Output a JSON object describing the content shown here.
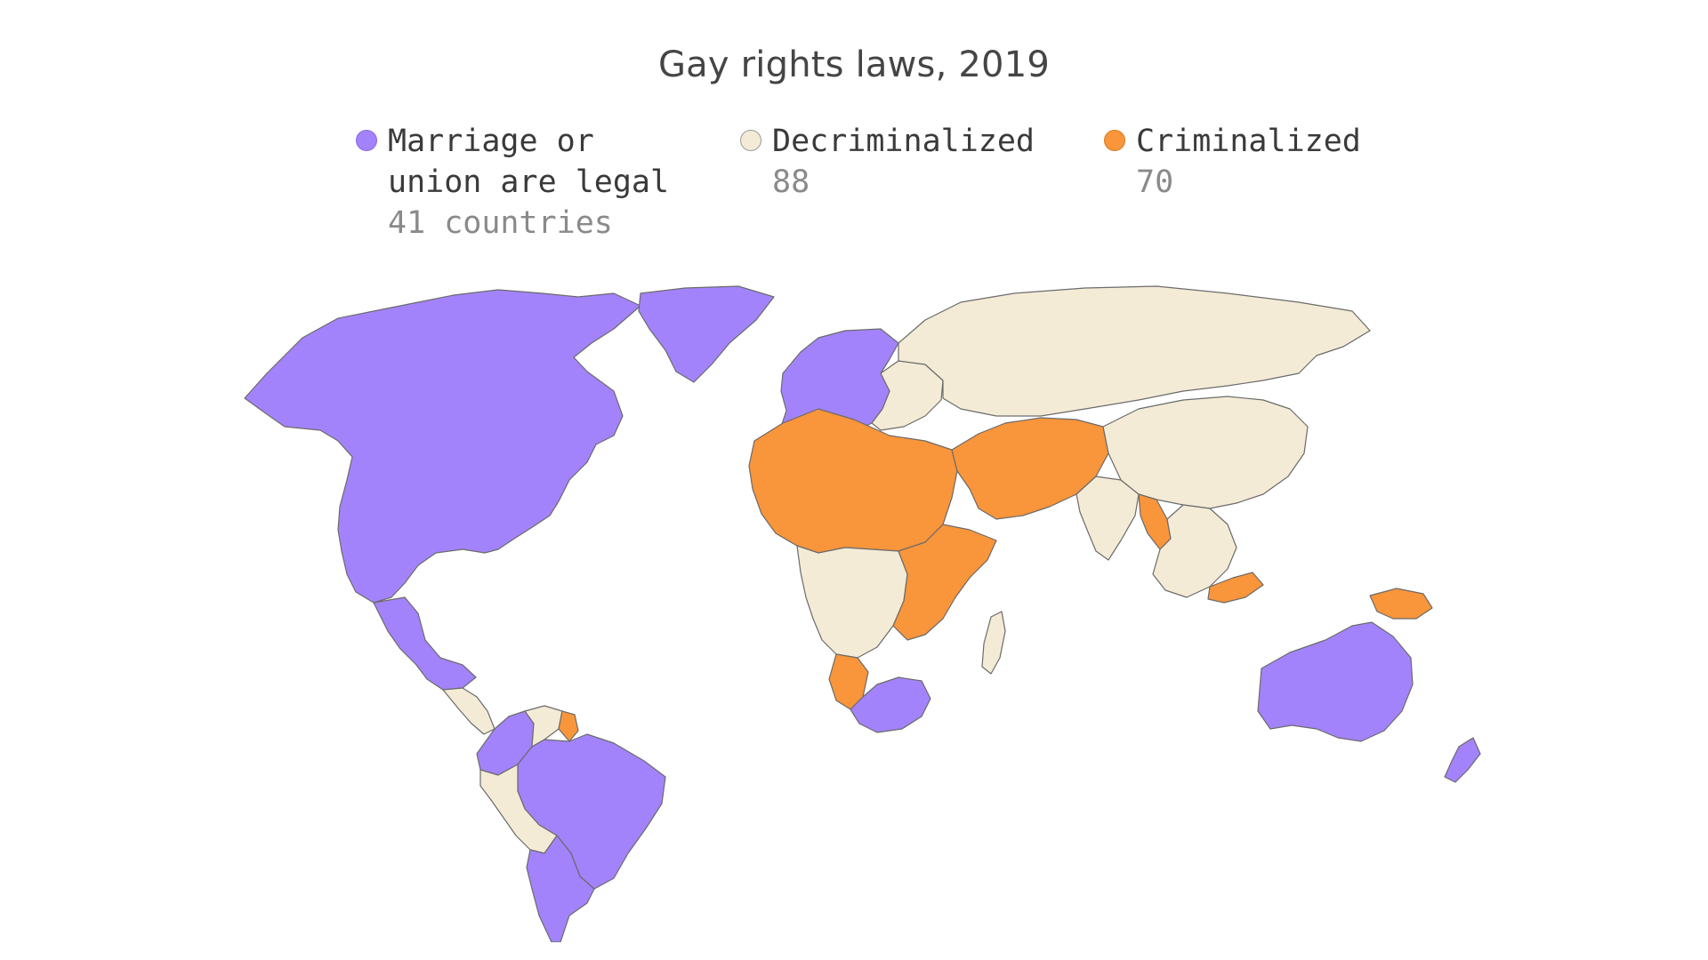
{
  "title": "Gay rights laws, 2019",
  "legend": [
    {
      "line1": "Marriage or",
      "line2": "union are legal",
      "count": "41 countries",
      "color": "#a383fb"
    },
    {
      "line1": "Decriminalized",
      "line2": "",
      "count": "88",
      "color": "#f4ebd6"
    },
    {
      "line1": "Criminalized",
      "line2": "",
      "count": "70",
      "color": "#f9953a"
    }
  ],
  "map_data": {
    "type": "choropleth",
    "categories": [
      "Marriage or union are legal",
      "Decriminalized",
      "Criminalized"
    ],
    "counts": [
      41,
      88,
      70
    ],
    "colors": {
      "marriage": "#a383fb",
      "decriminalized": "#f4ebd6",
      "criminalized": "#f9953a",
      "border": "#6b6b6b"
    },
    "regions": [
      {
        "name": "North America",
        "status": "marriage"
      },
      {
        "name": "Greenland",
        "status": "marriage"
      },
      {
        "name": "Mexico",
        "status": "marriage"
      },
      {
        "name": "Central America",
        "status": "decriminalized"
      },
      {
        "name": "Colombia & Ecuador",
        "status": "marriage"
      },
      {
        "name": "Venezuela",
        "status": "decriminalized"
      },
      {
        "name": "Guyana",
        "status": "criminalized"
      },
      {
        "name": "Brazil",
        "status": "marriage"
      },
      {
        "name": "Peru & Bolivia",
        "status": "decriminalized"
      },
      {
        "name": "Southern Cone",
        "status": "marriage"
      },
      {
        "name": "Western Europe",
        "status": "marriage"
      },
      {
        "name": "Eastern Europe",
        "status": "decriminalized"
      },
      {
        "name": "Russia & Central Asia",
        "status": "decriminalized"
      },
      {
        "name": "North Africa & Sahel",
        "status": "criminalized"
      },
      {
        "name": "Middle East & South Asia",
        "status": "criminalized"
      },
      {
        "name": "India",
        "status": "decriminalized"
      },
      {
        "name": "China & East Asia",
        "status": "decriminalized"
      },
      {
        "name": "Southeast Asia",
        "status": "decriminalized"
      },
      {
        "name": "Myanmar",
        "status": "criminalized"
      },
      {
        "name": "Malaysia",
        "status": "criminalized"
      },
      {
        "name": "Papua New Guinea",
        "status": "criminalized"
      },
      {
        "name": "Central Africa",
        "status": "decriminalized"
      },
      {
        "name": "East Africa",
        "status": "criminalized"
      },
      {
        "name": "South Africa",
        "status": "marriage"
      },
      {
        "name": "Namibia",
        "status": "criminalized"
      },
      {
        "name": "Madagascar",
        "status": "decriminalized"
      },
      {
        "name": "Australia",
        "status": "marriage"
      },
      {
        "name": "New Zealand",
        "status": "marriage"
      }
    ]
  }
}
